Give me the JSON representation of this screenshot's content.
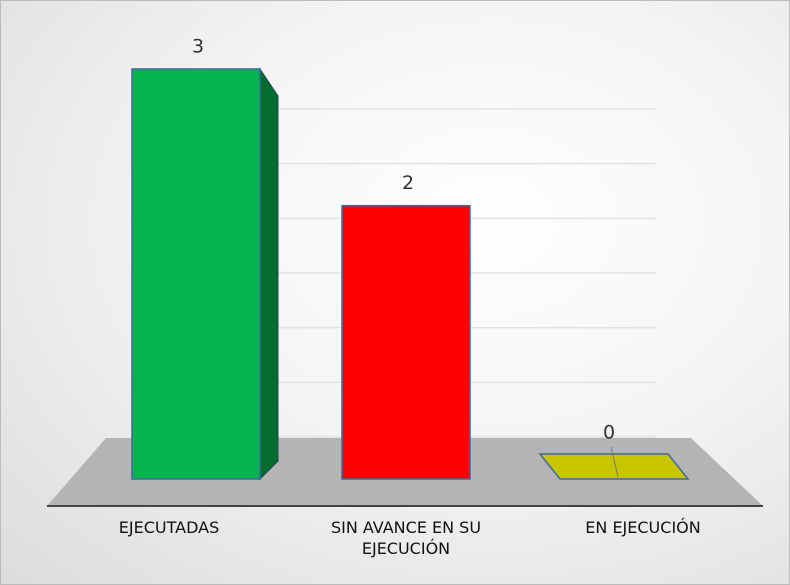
{
  "chart_data": {
    "type": "bar3d",
    "categories": [
      "EJECUTADAS",
      "SIN AVANCE EN SU EJECUCIÓN",
      "EN EJECUCIÓN"
    ],
    "values": [
      3,
      2,
      0
    ],
    "colors": [
      "#07b44f",
      "#ff0000",
      "#c9c400"
    ],
    "ylim": [
      0,
      3
    ],
    "yticks": [
      0,
      0.4,
      0.8,
      1.2,
      1.6,
      2,
      2.4
    ],
    "grid": true
  }
}
